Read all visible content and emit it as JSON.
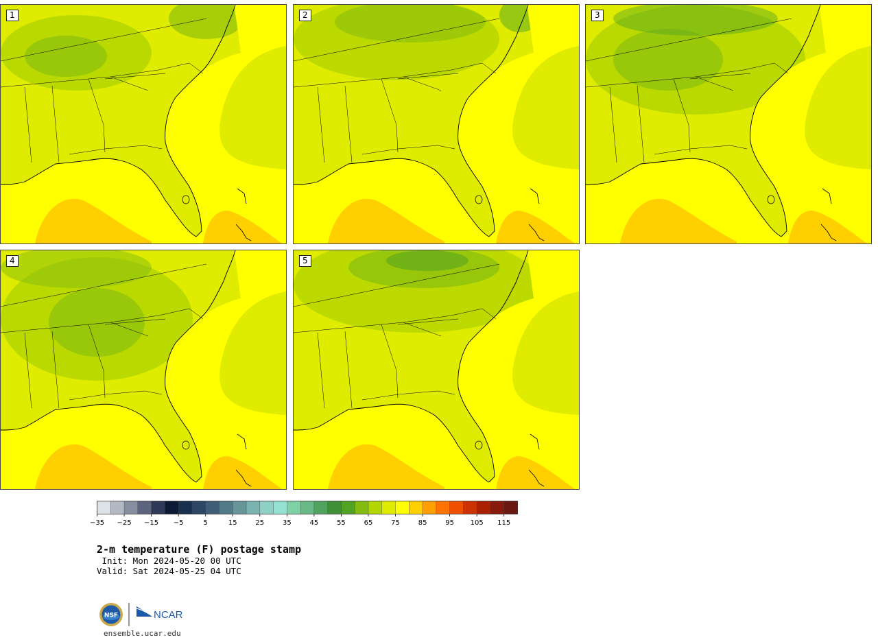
{
  "panels": [
    {
      "label": "1",
      "variant": 1
    },
    {
      "label": "2",
      "variant": 2
    },
    {
      "label": "3",
      "variant": 3
    },
    {
      "label": "4",
      "variant": 4
    },
    {
      "label": "5",
      "variant": 5
    }
  ],
  "colorbar": {
    "colors": [
      "#dde1e8",
      "#b3b8c5",
      "#878ea0",
      "#5c6580",
      "#2f3957",
      "#0d1a35",
      "#1b2f4e",
      "#2c4663",
      "#3f5e76",
      "#537a88",
      "#669699",
      "#79b4b0",
      "#8dd1c4",
      "#93e2d3",
      "#7fd2a7",
      "#69b986",
      "#51a360",
      "#409038",
      "#52a323",
      "#83bb11",
      "#b3d600",
      "#dfec00",
      "#ffff00",
      "#ffcf00",
      "#ff9f00",
      "#ff7300",
      "#ec5000",
      "#cc3300",
      "#a82000",
      "#861a0d",
      "#6b1712"
    ],
    "ticks": [
      "−35",
      "−25",
      "−15",
      "−5",
      "5",
      "15",
      "25",
      "35",
      "45",
      "55",
      "65",
      "75",
      "85",
      "95",
      "105",
      "115"
    ]
  },
  "title": "2-m temperature (F) postage stamp",
  "init": " Init: Mon 2024-05-20 00 UTC",
  "valid": "Valid: Sat 2024-05-25 04 UTC",
  "logos": {
    "nsf": "NSF",
    "ncar": "NCAR"
  },
  "site": "ensemble.ucar.edu"
}
